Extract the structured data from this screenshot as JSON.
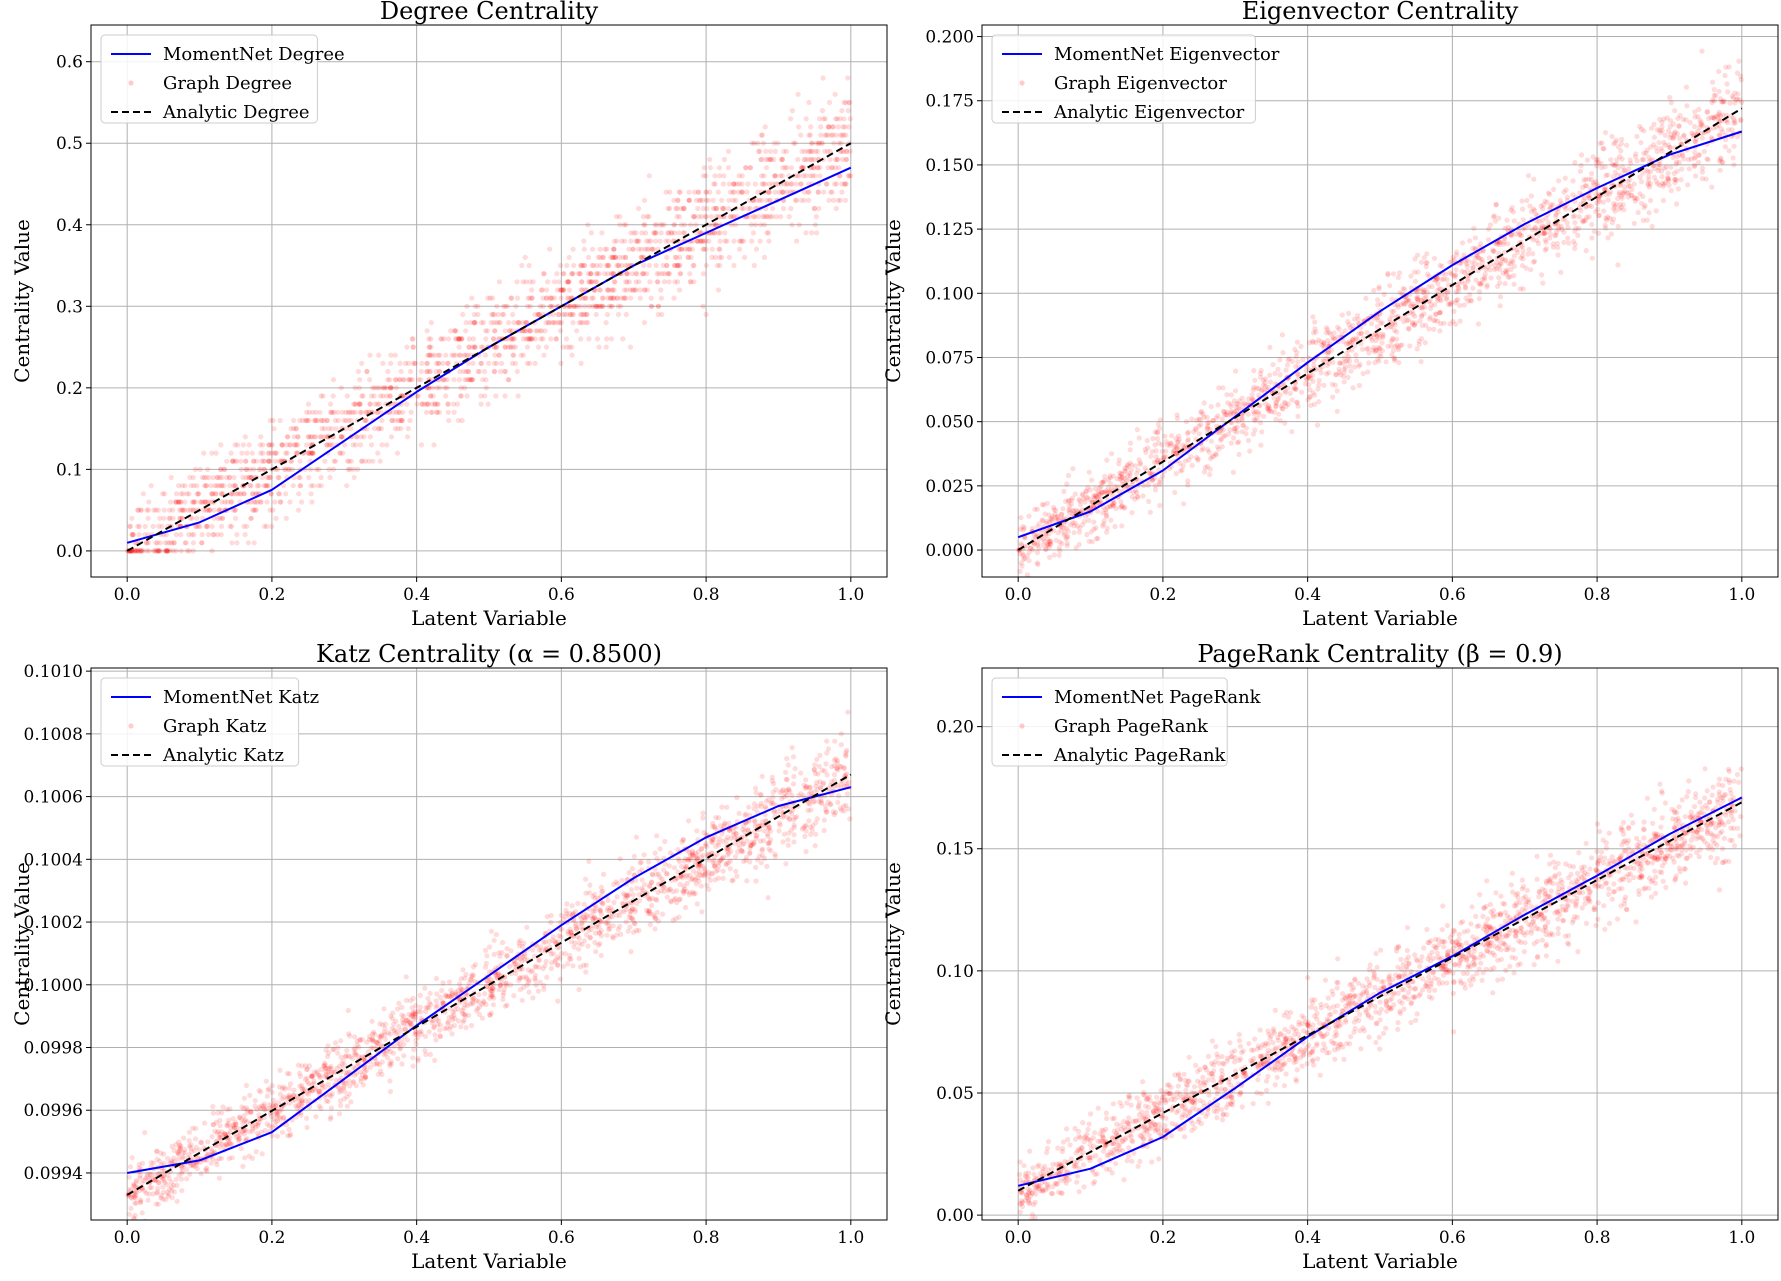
{
  "figure": {
    "background": "#ffffff"
  },
  "colors": {
    "momentnet": "#0000ff",
    "graph": "#ff0000",
    "analytic": "#000000",
    "grid": "#b0b0b0"
  },
  "chart_data": [
    {
      "id": "degree",
      "type": "scatter",
      "title": "Degree Centrality",
      "xlabel": "Latent Variable",
      "ylabel": "Centrality Value",
      "xlim": [
        -0.05,
        1.05
      ],
      "ylim": [
        -0.032,
        0.645
      ],
      "xticks": [
        0.0,
        0.2,
        0.4,
        0.6,
        0.8,
        1.0
      ],
      "xtick_labels": [
        "0.0",
        "0.2",
        "0.4",
        "0.6",
        "0.8",
        "1.0"
      ],
      "yticks": [
        0.0,
        0.1,
        0.2,
        0.3,
        0.4,
        0.5,
        0.6
      ],
      "ytick_labels": [
        "0.0",
        "0.1",
        "0.2",
        "0.3",
        "0.4",
        "0.5",
        "0.6"
      ],
      "grid": true,
      "legend_position": "top-left",
      "scatter_style": {
        "quantized": true,
        "step": 0.01
      },
      "series": [
        {
          "name": "MomentNet Degree",
          "kind": "line",
          "style": "solid",
          "x": [
            0,
            0.1,
            0.2,
            0.3,
            0.4,
            0.5,
            0.6,
            0.7,
            0.8,
            0.9,
            1.0
          ],
          "y": [
            0.01,
            0.035,
            0.075,
            0.135,
            0.195,
            0.25,
            0.3,
            0.35,
            0.39,
            0.43,
            0.47
          ]
        },
        {
          "name": "Graph Degree",
          "kind": "scatter",
          "trend_slope": 0.5,
          "trend_intercept": 0.0,
          "spread": 0.05,
          "spread_growth": 0.01,
          "n_points": 2000
        },
        {
          "name": "Analytic Degree",
          "kind": "line",
          "style": "dashed",
          "x": [
            0,
            1.0
          ],
          "y": [
            0.0,
            0.5
          ]
        }
      ]
    },
    {
      "id": "eigenvector",
      "type": "scatter",
      "title": "Eigenvector Centrality",
      "xlabel": "Latent Variable",
      "ylabel": "Centrality Value",
      "xlim": [
        -0.05,
        1.05
      ],
      "ylim": [
        -0.0105,
        0.2045
      ],
      "xticks": [
        0.0,
        0.2,
        0.4,
        0.6,
        0.8,
        1.0
      ],
      "xtick_labels": [
        "0.0",
        "0.2",
        "0.4",
        "0.6",
        "0.8",
        "1.0"
      ],
      "yticks": [
        0.0,
        0.025,
        0.05,
        0.075,
        0.1,
        0.125,
        0.15,
        0.175,
        0.2
      ],
      "ytick_labels": [
        "0.000",
        "0.025",
        "0.050",
        "0.075",
        "0.100",
        "0.125",
        "0.150",
        "0.175",
        "0.200"
      ],
      "grid": true,
      "legend_position": "top-left",
      "scatter_style": {
        "quantized": false
      },
      "series": [
        {
          "name": "MomentNet Eigenvector",
          "kind": "line",
          "style": "solid",
          "x": [
            0,
            0.1,
            0.2,
            0.3,
            0.4,
            0.5,
            0.6,
            0.7,
            0.8,
            0.9,
            1.0
          ],
          "y": [
            0.005,
            0.015,
            0.031,
            0.052,
            0.073,
            0.093,
            0.111,
            0.127,
            0.141,
            0.154,
            0.163
          ]
        },
        {
          "name": "Graph Eigenvector",
          "kind": "scatter",
          "trend_slope": 0.172,
          "trend_intercept": 0.0,
          "spread": 0.011,
          "spread_growth": 0.004,
          "n_points": 2000
        },
        {
          "name": "Analytic Eigenvector",
          "kind": "line",
          "style": "dashed",
          "x": [
            0,
            1.0
          ],
          "y": [
            0.0,
            0.172
          ]
        }
      ]
    },
    {
      "id": "katz",
      "type": "scatter",
      "title": "Katz Centrality (α = 0.8500)",
      "xlabel": "Latent Variable",
      "ylabel": "Centrality Value",
      "xlim": [
        -0.05,
        1.05
      ],
      "ylim": [
        0.09925,
        0.10101
      ],
      "xticks": [
        0.0,
        0.2,
        0.4,
        0.6,
        0.8,
        1.0
      ],
      "xtick_labels": [
        "0.0",
        "0.2",
        "0.4",
        "0.6",
        "0.8",
        "1.0"
      ],
      "yticks": [
        0.0994,
        0.0996,
        0.0998,
        0.1,
        0.1002,
        0.1004,
        0.1006,
        0.1008,
        0.101
      ],
      "ytick_labels": [
        "0.0994",
        "0.0996",
        "0.0998",
        "0.1000",
        "0.1002",
        "0.1004",
        "0.1006",
        "0.1008",
        "0.1010"
      ],
      "grid": true,
      "legend_position": "top-left",
      "scatter_style": {
        "quantized": false
      },
      "series": [
        {
          "name": "MomentNet Katz",
          "kind": "line",
          "style": "solid",
          "x": [
            0,
            0.1,
            0.2,
            0.3,
            0.4,
            0.5,
            0.6,
            0.7,
            0.8,
            0.9,
            1.0
          ],
          "y": [
            0.0994,
            0.09944,
            0.09953,
            0.0997,
            0.09987,
            0.10003,
            0.10019,
            0.10034,
            0.10047,
            0.10057,
            0.10063
          ]
        },
        {
          "name": "Graph Katz",
          "kind": "scatter",
          "trend_slope": 0.00134,
          "trend_intercept": 0.09933,
          "spread": 8e-05,
          "spread_growth": 3e-05,
          "n_points": 2000
        },
        {
          "name": "Analytic Katz",
          "kind": "line",
          "style": "dashed",
          "x": [
            0,
            1.0
          ],
          "y": [
            0.09933,
            0.10067
          ]
        }
      ]
    },
    {
      "id": "pagerank",
      "type": "scatter",
      "title": "PageRank Centrality (β = 0.9)",
      "xlabel": "Latent Variable",
      "ylabel": "Centrality Value",
      "xlim": [
        -0.05,
        1.05
      ],
      "ylim": [
        -0.002,
        0.224
      ],
      "xticks": [
        0.0,
        0.2,
        0.4,
        0.6,
        0.8,
        1.0
      ],
      "xtick_labels": [
        "0.0",
        "0.2",
        "0.4",
        "0.6",
        "0.8",
        "1.0"
      ],
      "yticks": [
        0.0,
        0.05,
        0.1,
        0.15,
        0.2
      ],
      "ytick_labels": [
        "0.00",
        "0.05",
        "0.10",
        "0.15",
        "0.20"
      ],
      "grid": true,
      "legend_position": "top-left",
      "scatter_style": {
        "quantized": false
      },
      "series": [
        {
          "name": "MomentNet PageRank",
          "kind": "line",
          "style": "solid",
          "x": [
            0,
            0.1,
            0.2,
            0.3,
            0.4,
            0.5,
            0.6,
            0.7,
            0.8,
            0.9,
            1.0
          ],
          "y": [
            0.012,
            0.019,
            0.032,
            0.052,
            0.073,
            0.091,
            0.106,
            0.123,
            0.139,
            0.156,
            0.171
          ]
        },
        {
          "name": "Graph PageRank",
          "kind": "scatter",
          "trend_slope": 0.159,
          "trend_intercept": 0.01,
          "spread": 0.011,
          "spread_growth": 0.004,
          "n_points": 2000
        },
        {
          "name": "Analytic PageRank",
          "kind": "line",
          "style": "dashed",
          "x": [
            0,
            1.0
          ],
          "y": [
            0.01,
            0.169
          ]
        }
      ]
    }
  ]
}
